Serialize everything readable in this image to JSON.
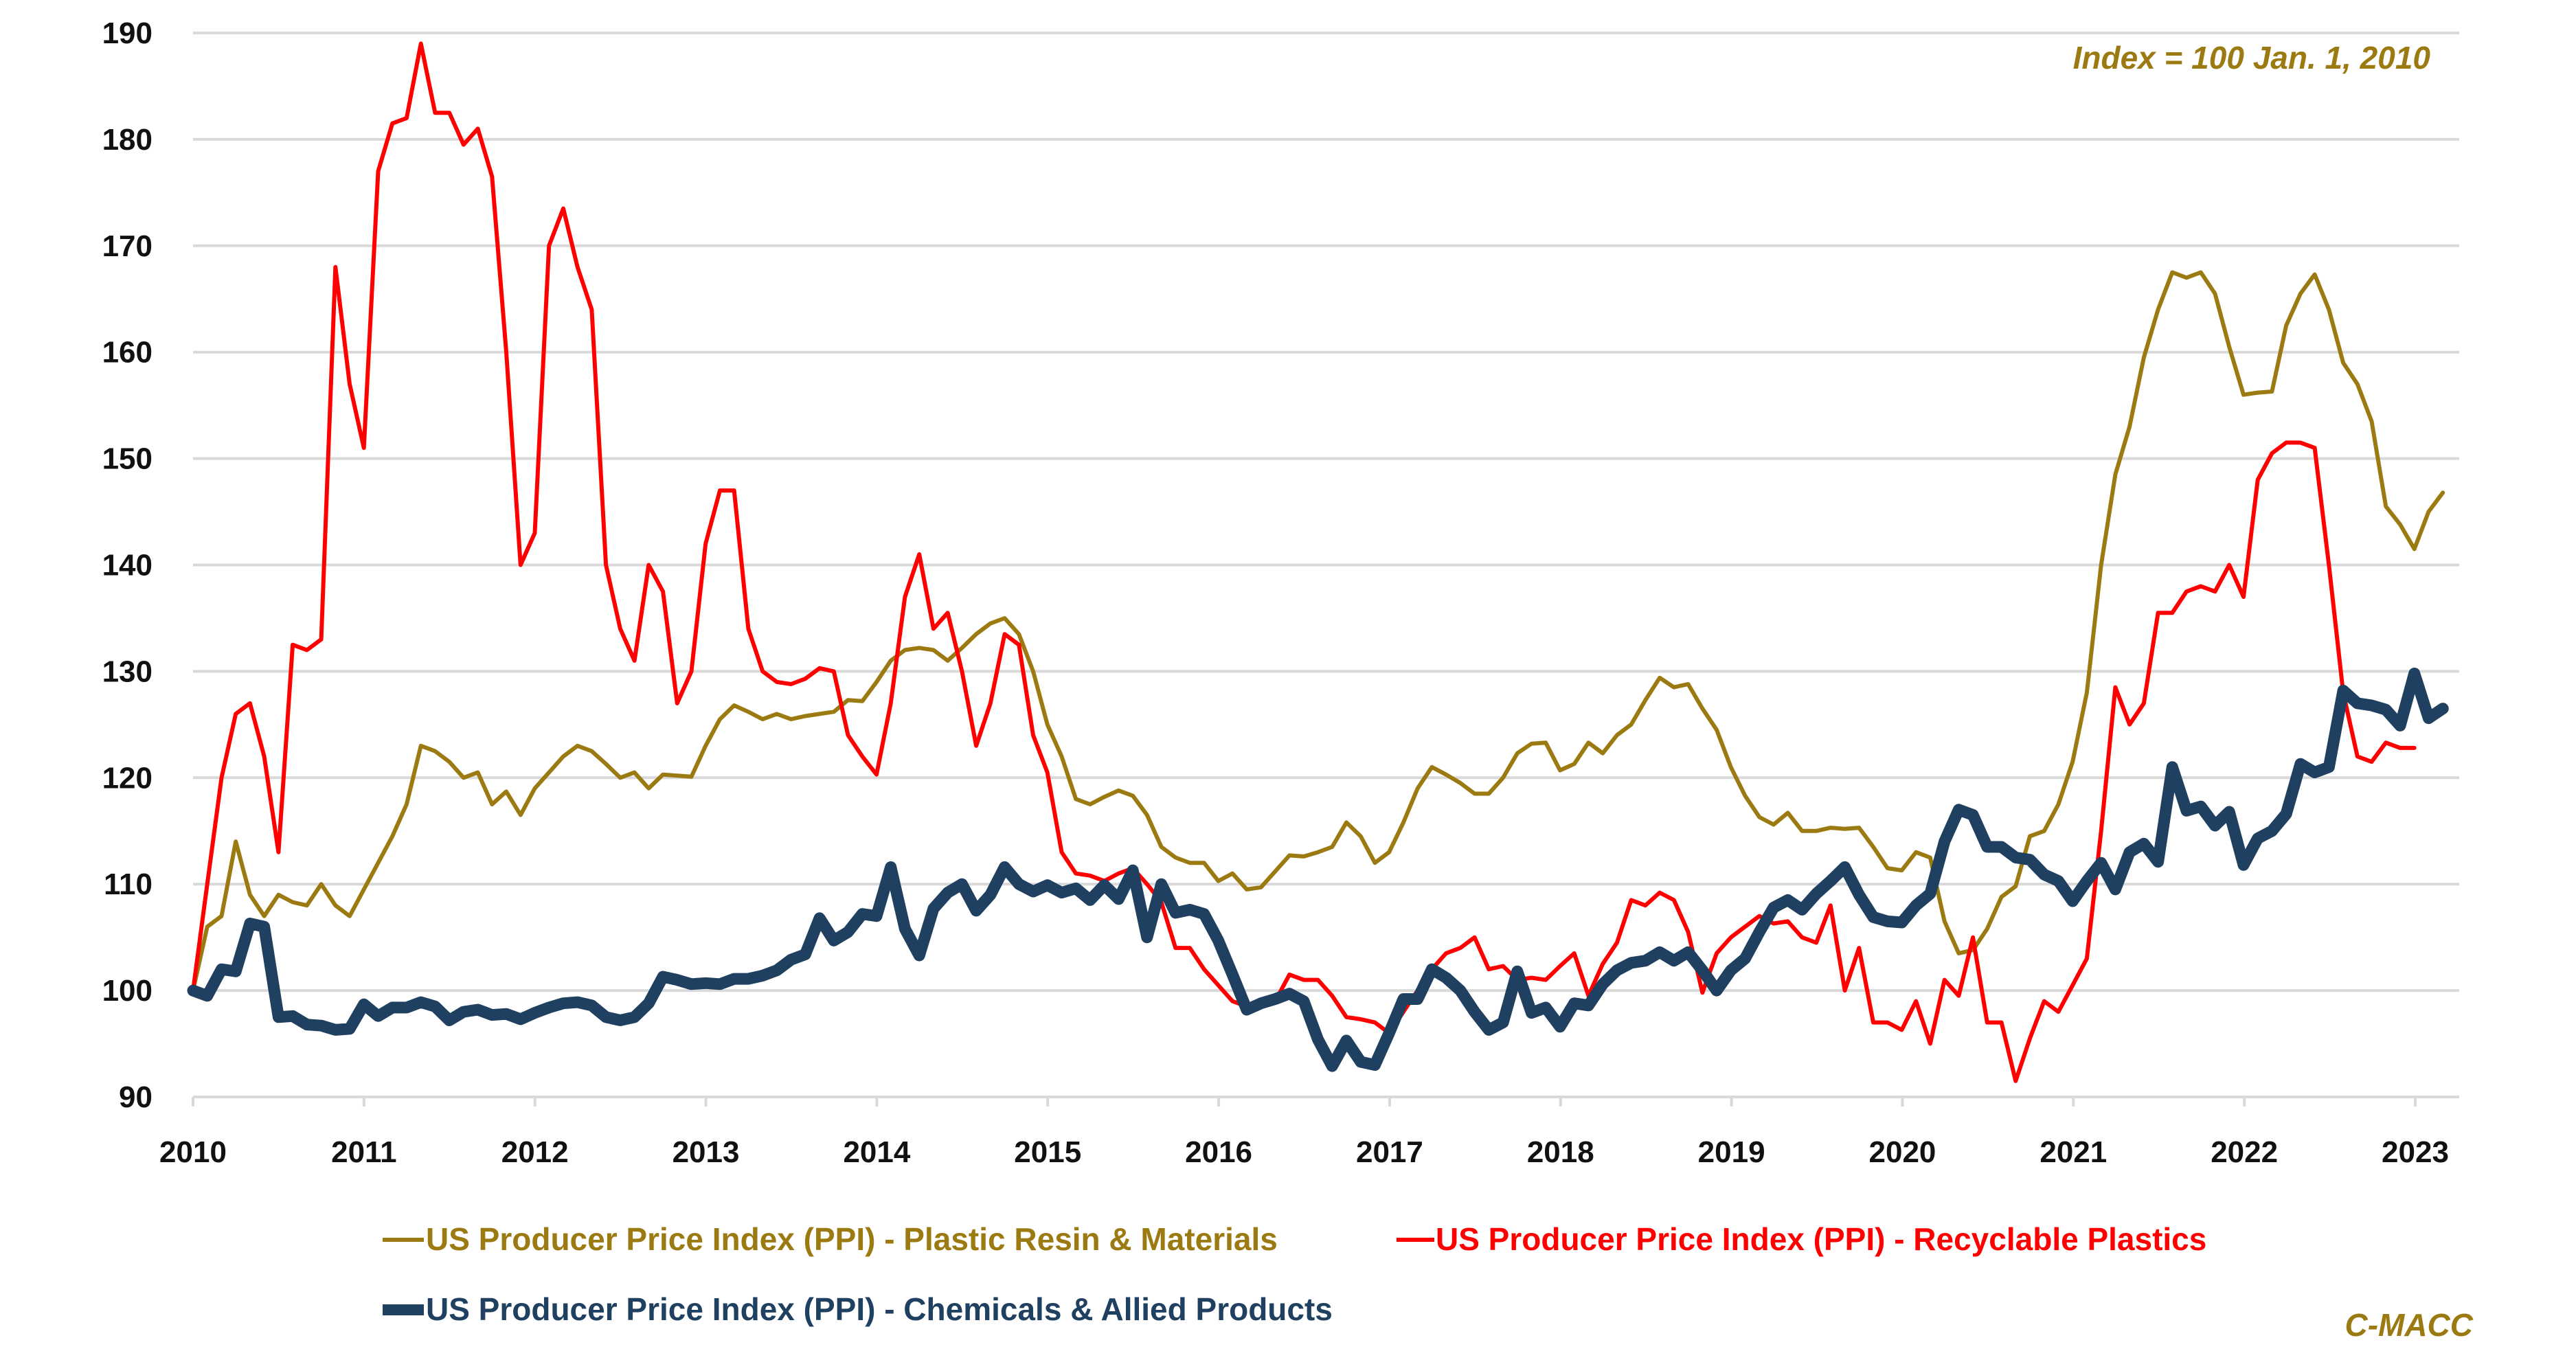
{
  "chart_data": {
    "type": "line",
    "title": "",
    "annotation": "Index = 100 Jan. 1, 2010",
    "source": "C-MACC",
    "xlabel": "",
    "ylabel": "",
    "xlim": [
      2010,
      2023.25
    ],
    "ylim": [
      90,
      190
    ],
    "y_ticks": [
      90,
      100,
      110,
      120,
      130,
      140,
      150,
      160,
      170,
      180,
      190
    ],
    "x_ticks": [
      2010,
      2011,
      2012,
      2013,
      2014,
      2015,
      2016,
      2017,
      2018,
      2019,
      2020,
      2021,
      2022,
      2023
    ],
    "grid": "horizontal",
    "legend_placement": "bottom",
    "colors": {
      "resin": "#9C7A12",
      "recyclable": "#FF0000",
      "chemicals": "#1F4060",
      "grid": "#D9D9D9",
      "annotation": "#9C7A12"
    },
    "series": [
      {
        "name": "US Producer Price Index (PPI) - Plastic Resin & Materials",
        "key": "resin",
        "start": 2010,
        "step": 0.0833,
        "values": [
          100,
          106,
          107,
          114,
          109,
          107,
          109,
          108.3,
          108,
          110,
          108,
          107,
          109.5,
          112,
          114.5,
          117.5,
          123,
          122.5,
          121.5,
          120,
          120.5,
          117.5,
          118.7,
          116.5,
          119,
          120.5,
          122,
          123,
          122.5,
          121.3,
          120,
          120.5,
          119,
          120.3,
          120.2,
          120.1,
          123,
          125.5,
          126.8,
          126.2,
          125.5,
          126,
          125.5,
          125.8,
          126,
          126.2,
          127.3,
          127.2,
          129,
          131,
          132,
          132.2,
          132,
          131,
          132.2,
          133.5,
          134.5,
          135,
          133.5,
          130,
          125,
          122,
          118,
          117.5,
          118.2,
          118.8,
          118.3,
          116.5,
          113.5,
          112.5,
          112,
          112,
          110.3,
          111,
          109.5,
          109.7,
          111.2,
          112.7,
          112.6,
          113,
          113.5,
          115.8,
          114.5,
          112,
          113,
          115.8,
          119,
          121,
          120.3,
          119.5,
          118.5,
          118.5,
          120,
          122.3,
          123.2,
          123.3,
          120.7,
          121.3,
          123.3,
          122.3,
          124,
          125,
          127.3,
          129.4,
          128.5,
          128.8,
          126.5,
          124.5,
          121,
          118.3,
          116.3,
          115.6,
          116.7,
          115,
          115,
          115.3,
          115.2,
          115.3,
          113.5,
          111.5,
          111.3,
          113,
          112.5,
          106.5,
          103.5,
          103.8,
          105.8,
          108.8,
          109.8,
          114.5,
          115,
          117.5,
          121.5,
          128,
          140,
          148.5,
          153,
          159.5,
          164,
          167.5,
          167,
          167.5,
          165.5,
          160.5,
          156,
          156.2,
          156.3,
          162.5,
          165.5,
          167.3,
          164,
          159,
          157,
          153.5,
          145.5,
          143.8,
          141.5,
          145,
          146.8
        ]
      },
      {
        "name": "US Producer Price Index (PPI) - Recyclable Plastics",
        "key": "recyclable",
        "start": 2010,
        "step": 0.0833,
        "values": [
          100,
          110,
          120,
          126,
          127,
          122,
          113,
          132.5,
          132,
          133,
          168,
          157,
          151,
          177,
          181.5,
          182,
          189,
          182.5,
          182.5,
          179.5,
          181,
          176.5,
          160,
          140,
          143,
          170,
          173.5,
          168,
          164,
          140,
          134,
          131,
          140,
          137.5,
          127,
          130,
          142,
          147,
          147,
          134,
          130,
          129,
          128.8,
          129.3,
          130.3,
          130,
          124,
          122,
          120.3,
          127,
          137,
          141,
          134,
          135.5,
          130,
          123,
          127,
          133.5,
          132.5,
          124,
          120.5,
          113,
          111,
          110.8,
          110.3,
          111,
          111.5,
          110,
          108.3,
          104,
          104,
          102,
          100.5,
          99,
          98.5,
          98.5,
          99,
          101.5,
          101,
          101,
          99.5,
          97.5,
          97.3,
          97,
          96,
          98,
          100,
          102,
          103.5,
          104,
          105,
          102,
          102.3,
          101,
          101.2,
          101,
          102.3,
          103.5,
          99.5,
          102.5,
          104.5,
          108.5,
          108,
          109.2,
          108.5,
          105.5,
          99.8,
          103.5,
          105,
          106,
          107,
          106.3,
          106.5,
          105,
          104.5,
          108,
          100,
          104,
          97,
          97,
          96.3,
          99,
          95,
          101,
          99.5,
          105,
          97,
          97,
          91.5,
          95.5,
          99,
          98,
          100.5,
          103,
          115,
          128.5,
          125,
          127,
          135.5,
          135.5,
          137.5,
          138,
          137.5,
          140,
          137,
          148,
          150.5,
          151.5,
          151.5,
          151,
          140,
          128,
          122,
          121.5,
          123.3,
          122.8,
          122.8
        ]
      },
      {
        "name": "US Producer Price Index (PPI) - Chemicals & Allied Products",
        "key": "chemicals",
        "start": 2010,
        "step": 0.0833,
        "values": [
          100,
          99.5,
          102,
          101.8,
          106.3,
          106,
          97.5,
          97.6,
          96.8,
          96.7,
          96.3,
          96.4,
          98.7,
          97.6,
          98.4,
          98.4,
          98.9,
          98.5,
          97.2,
          98,
          98.2,
          97.7,
          97.8,
          97.3,
          97.9,
          98.4,
          98.8,
          98.9,
          98.6,
          97.5,
          97.2,
          97.5,
          98.8,
          101.3,
          101,
          100.6,
          100.7,
          100.6,
          101.1,
          101.1,
          101.4,
          101.9,
          102.9,
          103.4,
          106.8,
          104.7,
          105.5,
          107.2,
          107,
          111.6,
          105.8,
          103.3,
          107.7,
          109.2,
          110,
          107.5,
          109,
          111.6,
          110,
          109.3,
          109.9,
          109.2,
          109.6,
          108.5,
          109.9,
          108.6,
          111.3,
          105,
          110,
          107.3,
          107.6,
          107.2,
          104.7,
          101.5,
          98.2,
          98.8,
          99.2,
          99.7,
          99,
          95.4,
          92.9,
          95.3,
          93.3,
          93,
          96,
          99.2,
          99.2,
          102,
          101.2,
          100,
          98,
          96.3,
          97,
          101.8,
          97.9,
          98.4,
          96.6,
          98.8,
          98.6,
          100.6,
          101.9,
          102.6,
          102.8,
          103.6,
          102.8,
          103.6,
          101.9,
          100,
          101.9,
          103,
          105.5,
          107.8,
          108.5,
          107.6,
          109.1,
          110.3,
          111.6,
          109,
          106.9,
          106.5,
          106.4,
          108,
          109.1,
          114,
          117,
          116.5,
          113.5,
          113.5,
          112.5,
          112.3,
          110.9,
          110.3,
          108.4,
          110.3,
          112,
          109.5,
          113,
          113.8,
          112.1,
          121,
          116.9,
          117.3,
          115.5,
          116.8,
          111.8,
          114.3,
          115,
          116.6,
          121.3,
          120.5,
          121,
          128.2,
          127,
          126.8,
          126.4,
          124.9,
          129.8,
          125.6,
          126.5
        ]
      }
    ]
  }
}
